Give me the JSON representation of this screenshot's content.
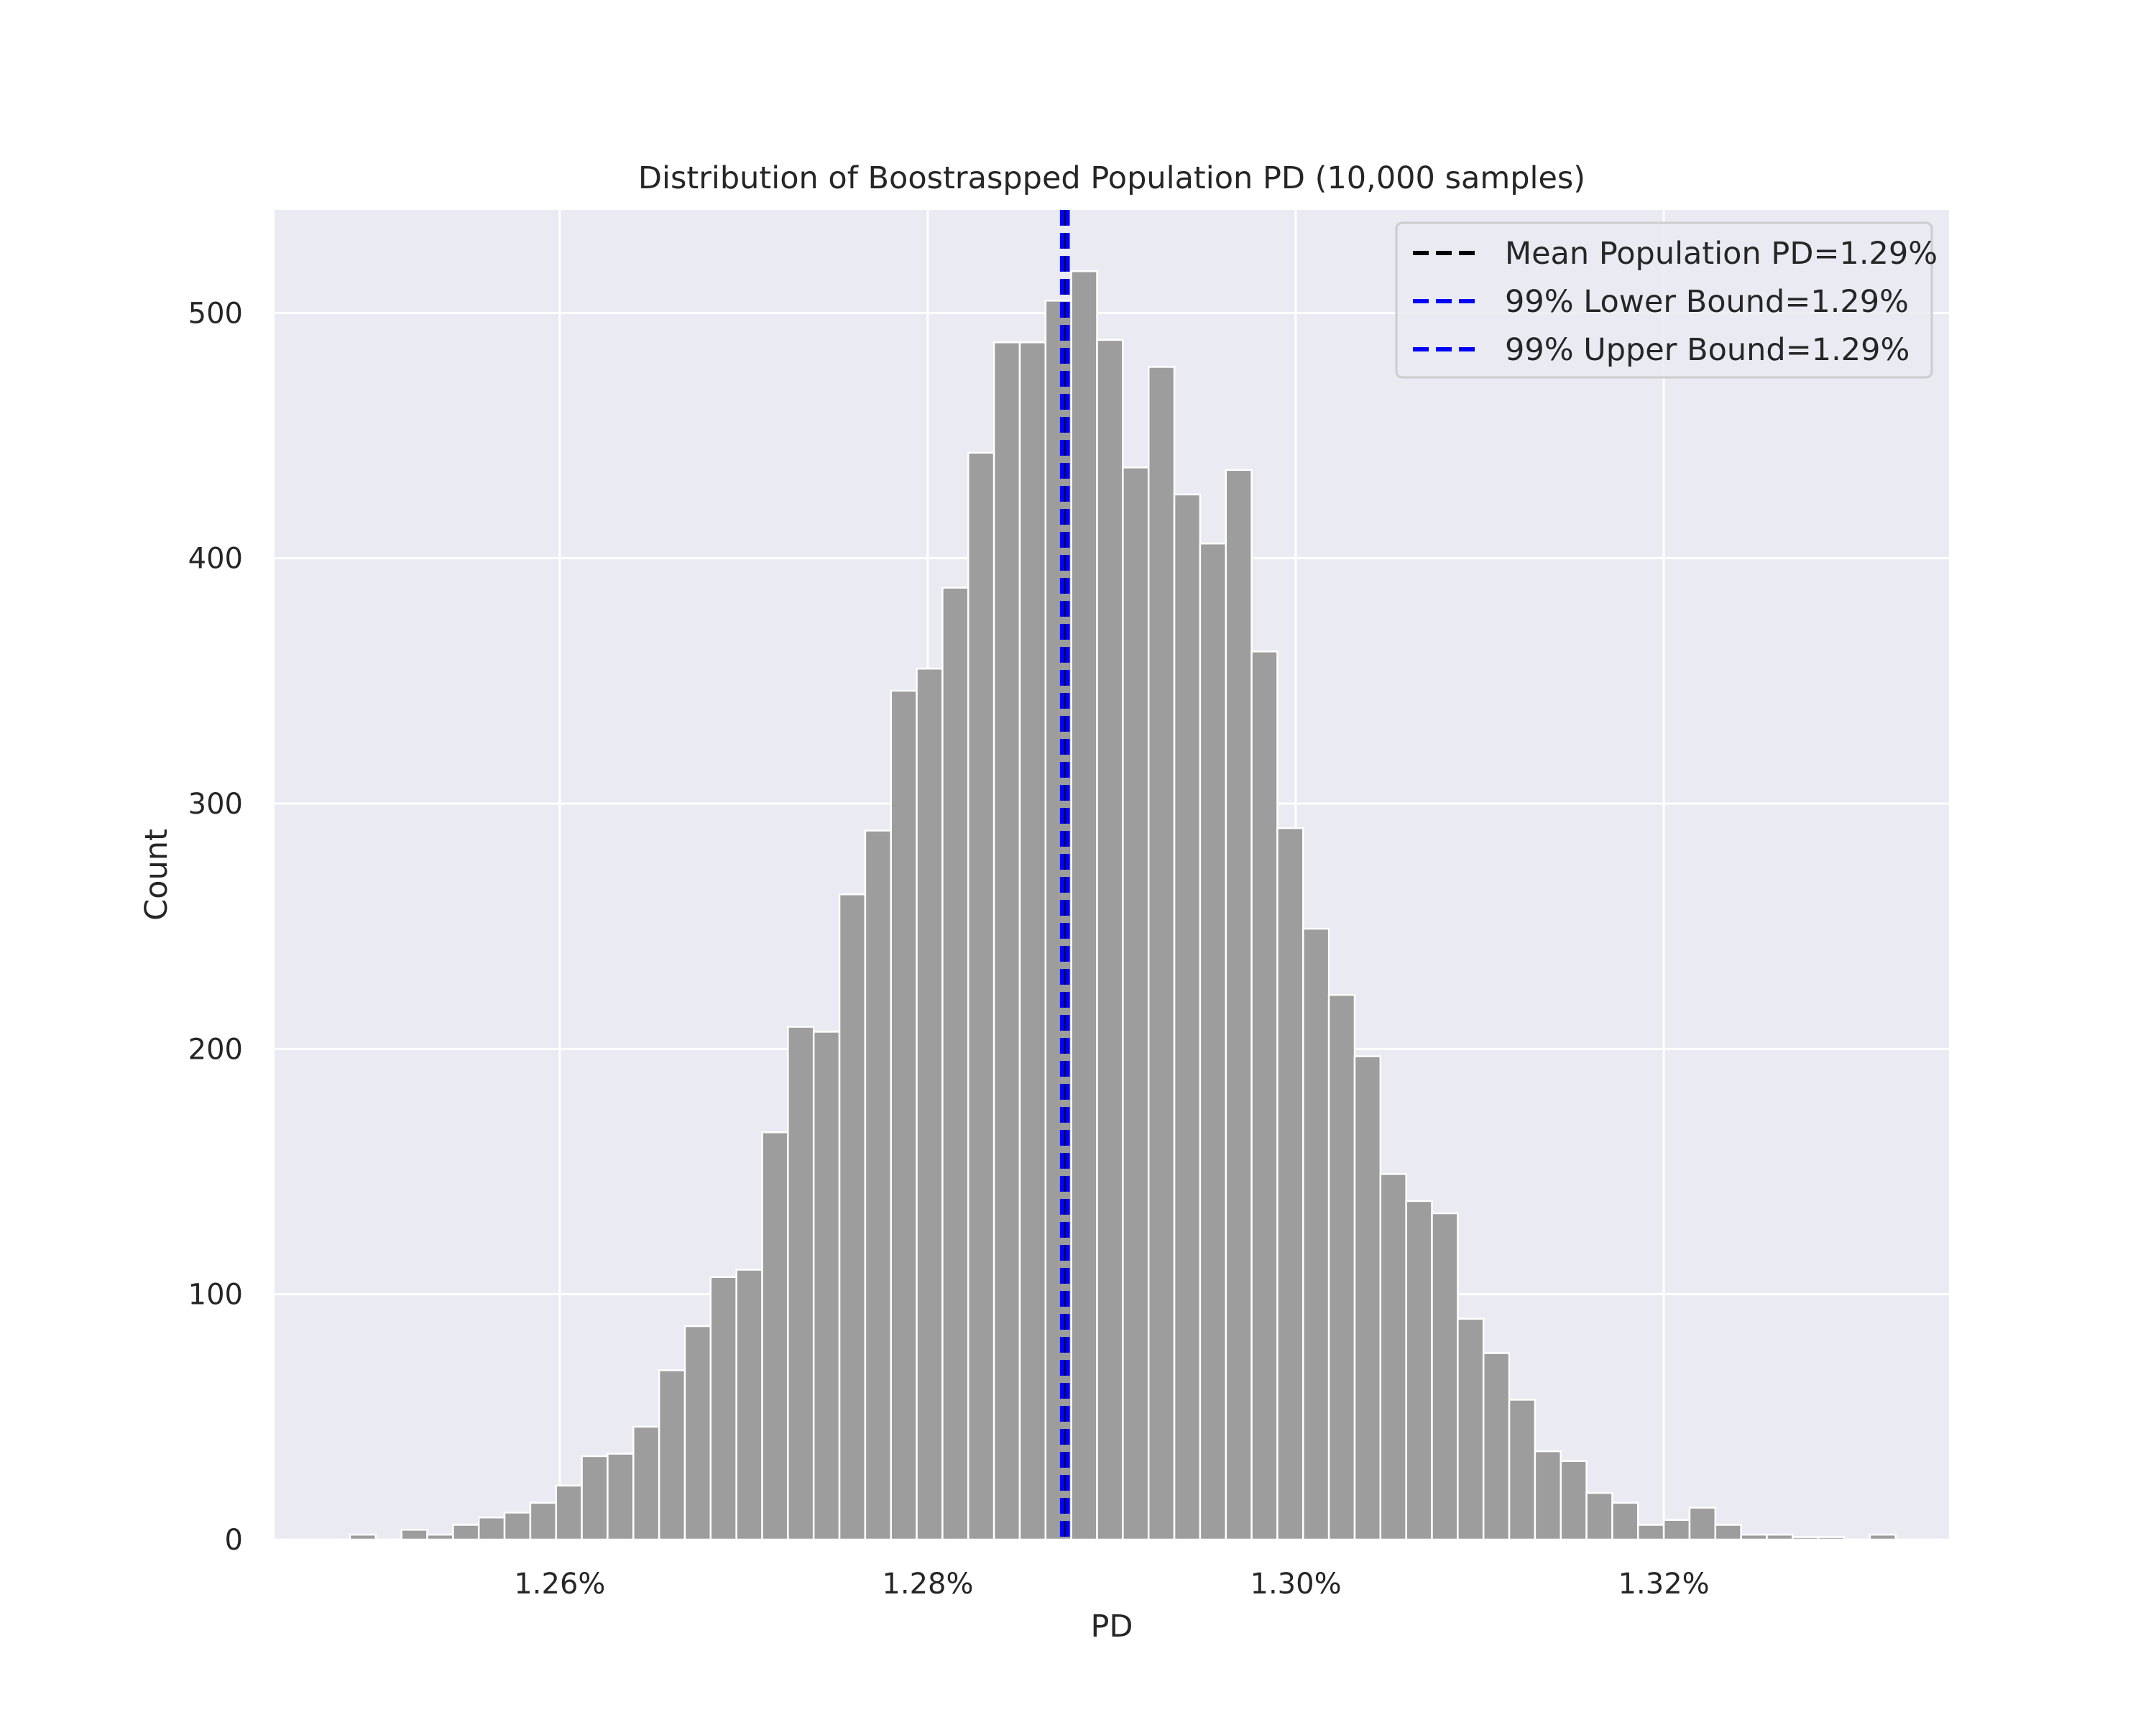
{
  "chart_data": {
    "type": "bar",
    "title": "Distribution of Boostraspped Population PD (10,000 samples)",
    "xlabel": "PD",
    "ylabel": "Count",
    "xlim": [
      1.2445,
      1.3355
    ],
    "ylim": [
      0,
      542
    ],
    "x_ticks": [
      {
        "value": 1.26,
        "label": "1.26%"
      },
      {
        "value": 1.28,
        "label": "1.28%"
      },
      {
        "value": 1.3,
        "label": "1.30%"
      },
      {
        "value": 1.32,
        "label": "1.32%"
      }
    ],
    "y_ticks": [
      {
        "value": 0,
        "label": "0"
      },
      {
        "value": 100,
        "label": "100"
      },
      {
        "value": 200,
        "label": "200"
      },
      {
        "value": 300,
        "label": "300"
      },
      {
        "value": 400,
        "label": "400"
      },
      {
        "value": 500,
        "label": "500"
      }
    ],
    "bins": {
      "start": 1.2486,
      "width": 0.0014,
      "counts": [
        2,
        0,
        4,
        2,
        6,
        9,
        11,
        15,
        22,
        34,
        35,
        46,
        69,
        87,
        107,
        110,
        166,
        209,
        207,
        263,
        289,
        346,
        355,
        388,
        443,
        488,
        488,
        505,
        517,
        489,
        437,
        478,
        426,
        406,
        436,
        362,
        290,
        249,
        222,
        197,
        149,
        138,
        133,
        90,
        76,
        57,
        36,
        32,
        19,
        15,
        6,
        8,
        13,
        6,
        2,
        2,
        1,
        1,
        0,
        2
      ]
    },
    "vlines": [
      {
        "name": "Mean Population PD=1.29%",
        "x": 1.2875,
        "color": "#000000"
      },
      {
        "name": "99% Lower Bound=1.29%",
        "x": 1.2873,
        "color": "#0000ff"
      },
      {
        "name": "99% Upper Bound=1.29%",
        "x": 1.2876,
        "color": "#0000ff"
      }
    ],
    "legend_position": "top-right",
    "grid": true,
    "colors": {
      "plot_background": "#eaeaf2",
      "grid": "#ffffff",
      "bar_fill": "#9d9d9d",
      "bar_edge": "#ffffff"
    }
  }
}
